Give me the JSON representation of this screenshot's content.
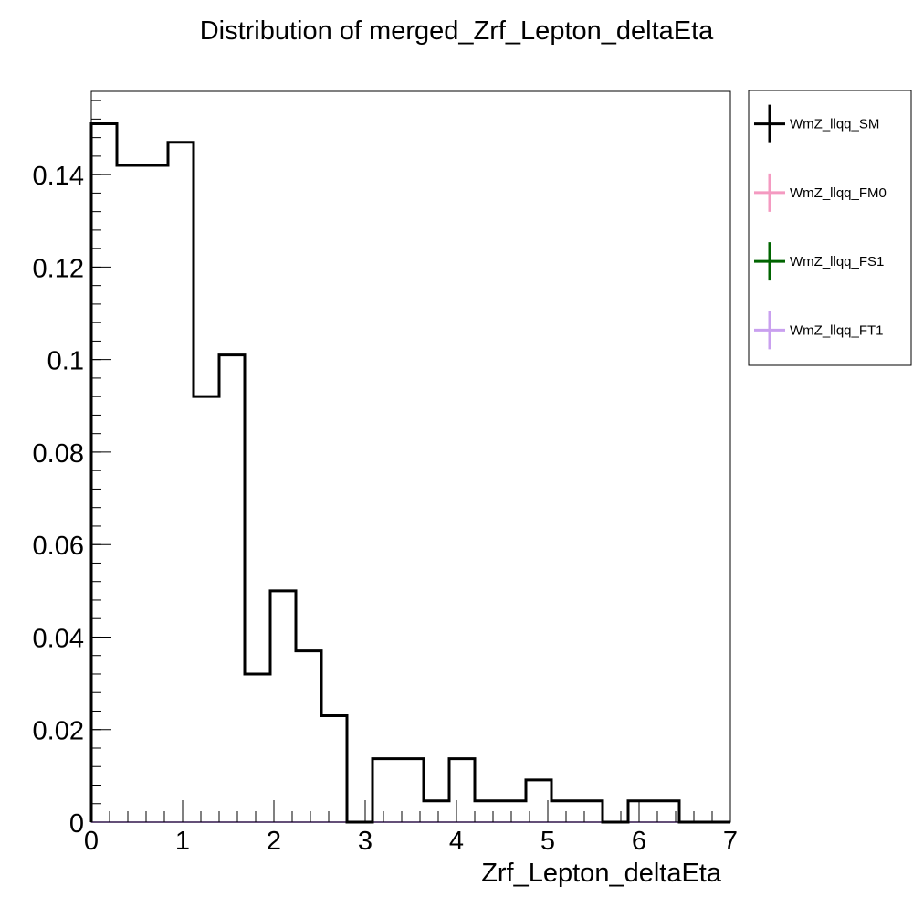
{
  "chart_data": {
    "type": "histogram",
    "title": "Distribution of merged_Zrf_Lepton_deltaEta",
    "xlabel": "Zrf_Lepton_deltaEta",
    "ylabel": "",
    "xlim": [
      0,
      7
    ],
    "ylim": [
      0,
      0.158
    ],
    "bin_width": 0.28,
    "bin_edges_start": 0,
    "x_ticks": [
      0,
      1,
      2,
      3,
      4,
      5,
      6,
      7
    ],
    "x_tick_labels": [
      "0",
      "1",
      "2",
      "3",
      "4",
      "5",
      "6",
      "7"
    ],
    "y_ticks": [
      0,
      0.02,
      0.04,
      0.06,
      0.08,
      0.1,
      0.12,
      0.14
    ],
    "y_tick_labels": [
      "0",
      "0.02",
      "0.04",
      "0.06",
      "0.08",
      "0.1",
      "0.12",
      "0.14"
    ],
    "grid": false,
    "legend_position": "right",
    "series": [
      {
        "name": "WmZ_llqq_SM",
        "color": "#000000",
        "values": [
          0.151,
          0.142,
          0.142,
          0.147,
          0.092,
          0.101,
          0.032,
          0.05,
          0.037,
          0.023,
          0.0,
          0.0137,
          0.0137,
          0.0046,
          0.0137,
          0.0046,
          0.0046,
          0.0091,
          0.0046,
          0.0046,
          0.0,
          0.0046,
          0.0046,
          0.0,
          0.0
        ]
      },
      {
        "name": "WmZ_llqq_FM0",
        "color": "#f49ac1",
        "values": []
      },
      {
        "name": "WmZ_llqq_FS1",
        "color": "#006400",
        "values": []
      },
      {
        "name": "WmZ_llqq_FT1",
        "color": "#c9a0ef",
        "values": []
      }
    ]
  }
}
